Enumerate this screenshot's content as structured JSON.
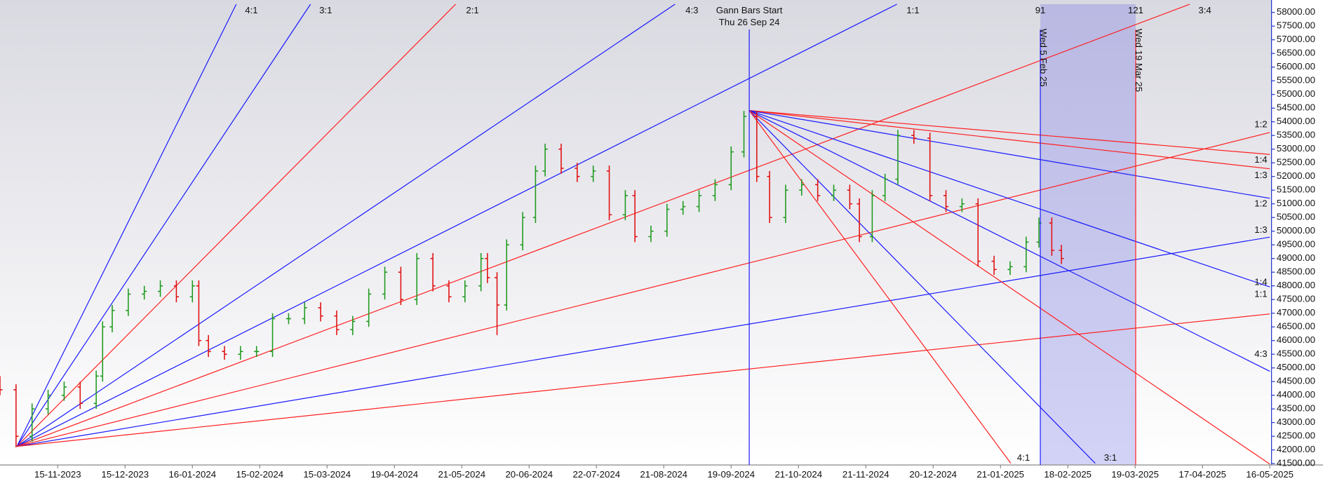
{
  "chart_data": {
    "type": "ohlc",
    "x": [
      0,
      5,
      10,
      15,
      20,
      25,
      30,
      32,
      35,
      40,
      45,
      50,
      55,
      60,
      62,
      65,
      70,
      75,
      80,
      85,
      90,
      95,
      100,
      105,
      110,
      115,
      120,
      125,
      130,
      135,
      140,
      145,
      150,
      152,
      155,
      158,
      163,
      167,
      170,
      175,
      180,
      185,
      190,
      195,
      198,
      203,
      208,
      213,
      218,
      223,
      228,
      232,
      236,
      240,
      245,
      250,
      255,
      260,
      265,
      268,
      272,
      276,
      280,
      285,
      290,
      295,
      300,
      305,
      310,
      315,
      320,
      324,
      328,
      331
    ],
    "open": [
      44500,
      44200,
      42500,
      43500,
      44000,
      44300,
      43700,
      44700,
      46500,
      47100,
      47700,
      47800,
      48000,
      47600,
      48000,
      46000,
      45600,
      45500,
      45600,
      45600,
      46800,
      46800,
      47200,
      46900,
      46400,
      46700,
      47700,
      48500,
      47500,
      49000,
      48000,
      47600,
      48000,
      49000,
      48300,
      47300,
      49500,
      50500,
      52200,
      53000,
      52300,
      52000,
      52200,
      50600,
      51300,
      49800,
      50000,
      50800,
      50900,
      51300,
      51700,
      52900,
      54200,
      52000,
      50500,
      51500,
      51700,
      51300,
      51500,
      51000,
      49800,
      51300,
      51900,
      53500,
      53400,
      51300,
      50900,
      51000,
      48900,
      48600,
      48700,
      49600,
      50300,
      49300
    ],
    "high": [
      44700,
      44400,
      43700,
      44200,
      44500,
      44500,
      44900,
      46700,
      47300,
      47900,
      48000,
      48200,
      48200,
      48200,
      48200,
      46200,
      45800,
      45800,
      45800,
      47000,
      47000,
      47400,
      47400,
      47100,
      46900,
      47900,
      48700,
      48700,
      49200,
      49200,
      48200,
      48200,
      49200,
      49200,
      48500,
      49700,
      50700,
      52400,
      53200,
      53200,
      52500,
      52400,
      52400,
      51500,
      51500,
      50200,
      51000,
      51100,
      51500,
      51900,
      53100,
      54400,
      54400,
      52200,
      51700,
      51900,
      51900,
      51700,
      51700,
      51200,
      51500,
      52100,
      53700,
      53700,
      53600,
      51500,
      51200,
      51200,
      49100,
      48900,
      49800,
      50500,
      50500,
      49500
    ],
    "low": [
      44000,
      42100,
      42300,
      43300,
      43800,
      43500,
      43500,
      44500,
      46300,
      46900,
      47500,
      47600,
      47400,
      47400,
      45800,
      45400,
      45300,
      45300,
      45400,
      45400,
      46600,
      46600,
      46700,
      46200,
      46200,
      46500,
      47500,
      47300,
      47300,
      47800,
      47400,
      47400,
      47800,
      48100,
      46200,
      47100,
      49300,
      50300,
      52000,
      52100,
      51800,
      51800,
      50400,
      50400,
      49600,
      49600,
      49800,
      50600,
      50700,
      51100,
      51500,
      52700,
      51800,
      50300,
      50300,
      51300,
      51100,
      51100,
      50800,
      49600,
      49600,
      51100,
      51700,
      53200,
      51100,
      50700,
      50700,
      48700,
      48400,
      48400,
      48500,
      49400,
      49100,
      48800
    ],
    "close": [
      44200,
      42500,
      43500,
      44000,
      44300,
      43700,
      44700,
      46500,
      47100,
      47700,
      47800,
      48000,
      47600,
      48000,
      46000,
      45600,
      45500,
      45600,
      45600,
      46800,
      46800,
      47200,
      46900,
      46400,
      46700,
      47700,
      48500,
      47500,
      49000,
      48000,
      47600,
      48000,
      49000,
      48300,
      47300,
      49500,
      50500,
      52200,
      53000,
      52300,
      52000,
      52200,
      50600,
      51300,
      49800,
      50000,
      50800,
      50900,
      51300,
      51700,
      52900,
      54200,
      52000,
      50500,
      51500,
      51700,
      51300,
      51500,
      51000,
      49800,
      51300,
      51900,
      53500,
      53400,
      51300,
      50900,
      51000,
      48900,
      48600,
      48700,
      49600,
      50300,
      49300,
      49000
    ],
    "up_color": "#1e9a1e",
    "down_color": "#e01010",
    "xlim": [
      0,
      396
    ],
    "xticks": [
      {
        "value": 18,
        "label": "15-11-2023"
      },
      {
        "value": 39,
        "label": "15-12-2023"
      },
      {
        "value": 60,
        "label": "16-01-2024"
      },
      {
        "value": 81,
        "label": "15-02-2024"
      },
      {
        "value": 102,
        "label": "15-03-2024"
      },
      {
        "value": 123,
        "label": "19-04-2024"
      },
      {
        "value": 144,
        "label": "21-05-2024"
      },
      {
        "value": 165,
        "label": "20-06-2024"
      },
      {
        "value": 186,
        "label": "22-07-2024"
      },
      {
        "value": 207,
        "label": "21-08-2024"
      },
      {
        "value": 228,
        "label": "19-09-2024"
      },
      {
        "value": 249,
        "label": "21-10-2024"
      },
      {
        "value": 270,
        "label": "21-11-2024"
      },
      {
        "value": 291,
        "label": "20-12-2024"
      },
      {
        "value": 312,
        "label": "21-01-2025"
      },
      {
        "value": 333,
        "label": "18-02-2025"
      },
      {
        "value": 354,
        "label": "19-03-2025"
      },
      {
        "value": 375,
        "label": "17-04-2025"
      },
      {
        "value": 396,
        "label": "16-05-2025"
      }
    ],
    "ylim": [
      41450,
      58300
    ],
    "yticks": [
      {
        "value": 41500,
        "label": "41500.00"
      },
      {
        "value": 42000,
        "label": "42000.00"
      },
      {
        "value": 42500,
        "label": "42500.00"
      },
      {
        "value": 43000,
        "label": "43000.00"
      },
      {
        "value": 43500,
        "label": "43500.00"
      },
      {
        "value": 44000,
        "label": "44000.00"
      },
      {
        "value": 44500,
        "label": "44500.00"
      },
      {
        "value": 45000,
        "label": "45000.00"
      },
      {
        "value": 45500,
        "label": "45500.00"
      },
      {
        "value": 46000,
        "label": "46000.00"
      },
      {
        "value": 46500,
        "label": "46500.00"
      },
      {
        "value": 47000,
        "label": "47000.00"
      },
      {
        "value": 47500,
        "label": "47500.00"
      },
      {
        "value": 48000,
        "label": "48000.00"
      },
      {
        "value": 48500,
        "label": "48500.00"
      },
      {
        "value": 49000,
        "label": "49000.00"
      },
      {
        "value": 49500,
        "label": "49500.00"
      },
      {
        "value": 50000,
        "label": "50000.00"
      },
      {
        "value": 50500,
        "label": "50500.00"
      },
      {
        "value": 51000,
        "label": "51000.00"
      },
      {
        "value": 51500,
        "label": "51500.00"
      },
      {
        "value": 52000,
        "label": "52000.00"
      },
      {
        "value": 52500,
        "label": "52500.00"
      },
      {
        "value": 53000,
        "label": "53000.00"
      },
      {
        "value": 53500,
        "label": "53500.00"
      },
      {
        "value": 54000,
        "label": "54000.00"
      },
      {
        "value": 54500,
        "label": "54500.00"
      },
      {
        "value": 55000,
        "label": "55000.00"
      },
      {
        "value": 55500,
        "label": "55500.00"
      },
      {
        "value": 56000,
        "label": "56000.00"
      },
      {
        "value": 56500,
        "label": "56500.00"
      },
      {
        "value": 57000,
        "label": "57000.00"
      },
      {
        "value": 57500,
        "label": "57500.00"
      },
      {
        "value": 58000,
        "label": "58000.00"
      }
    ]
  },
  "annotations": {
    "gann_start": "Gann Bars Start",
    "gann_start_date": "Thu 26 Sep 24",
    "bar_counts": [
      91,
      121
    ],
    "vertical_dates": [
      "Wed 5 Feb 25",
      "Wed 19 Mar 25"
    ],
    "fan_labels": [
      "4:1",
      "3:1",
      "2:1",
      "4:3",
      "1:1",
      "3:4",
      "1:2",
      "1:4",
      "1:3",
      "1:2",
      "1:3",
      "1:4",
      "1:1",
      "4:3",
      "4:1",
      "3:1"
    ]
  }
}
